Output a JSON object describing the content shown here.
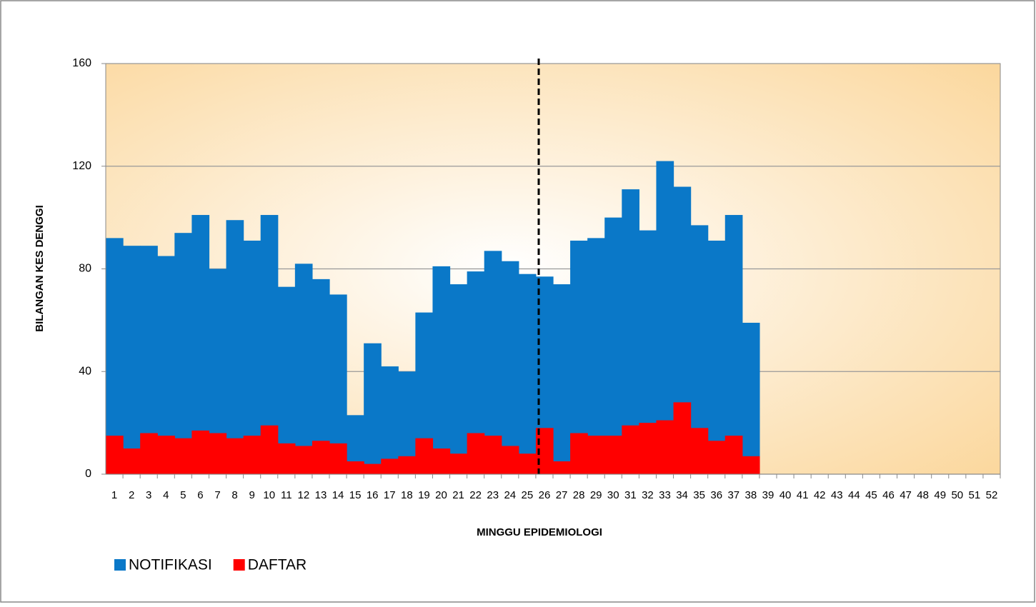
{
  "chart_data": {
    "type": "area",
    "y_label": "BILANGAN KES DENGGI",
    "x_label": "MINGGU EPIDEMIOLOGI",
    "categories": [
      "1",
      "2",
      "3",
      "4",
      "5",
      "6",
      "7",
      "8",
      "9",
      "10",
      "11",
      "12",
      "13",
      "14",
      "15",
      "16",
      "17",
      "18",
      "19",
      "20",
      "21",
      "22",
      "23",
      "24",
      "25",
      "26",
      "27",
      "28",
      "29",
      "30",
      "31",
      "32",
      "33",
      "34",
      "35",
      "36",
      "37",
      "38",
      "39",
      "40",
      "41",
      "42",
      "43",
      "44",
      "45",
      "46",
      "47",
      "48",
      "49",
      "50",
      "51",
      "52"
    ],
    "series": [
      {
        "name": "NOTIFIKASI",
        "color": "#0a78c8",
        "values": [
          92,
          89,
          89,
          85,
          94,
          101,
          80,
          99,
          91,
          101,
          73,
          82,
          76,
          70,
          23,
          51,
          42,
          40,
          63,
          81,
          74,
          79,
          87,
          83,
          78,
          77,
          74,
          91,
          92,
          100,
          111,
          95,
          122,
          112,
          97,
          91,
          101,
          59,
          null,
          null,
          null,
          null,
          null,
          null,
          null,
          null,
          null,
          null,
          null,
          null,
          null,
          null
        ]
      },
      {
        "name": "DAFTAR",
        "color": "#ff0000",
        "values": [
          15,
          10,
          16,
          15,
          14,
          17,
          16,
          14,
          15,
          19,
          12,
          11,
          13,
          12,
          5,
          4,
          6,
          7,
          14,
          10,
          8,
          16,
          15,
          11,
          8,
          18,
          5,
          16,
          15,
          15,
          19,
          20,
          21,
          28,
          18,
          13,
          15,
          7,
          null,
          null,
          null,
          null,
          null,
          null,
          null,
          null,
          null,
          null,
          null,
          null,
          null,
          null
        ]
      }
    ],
    "ylim": [
      0,
      160
    ],
    "yticks": [
      0,
      40,
      80,
      120,
      160
    ],
    "grid": true,
    "legend": "bottom-left"
  }
}
